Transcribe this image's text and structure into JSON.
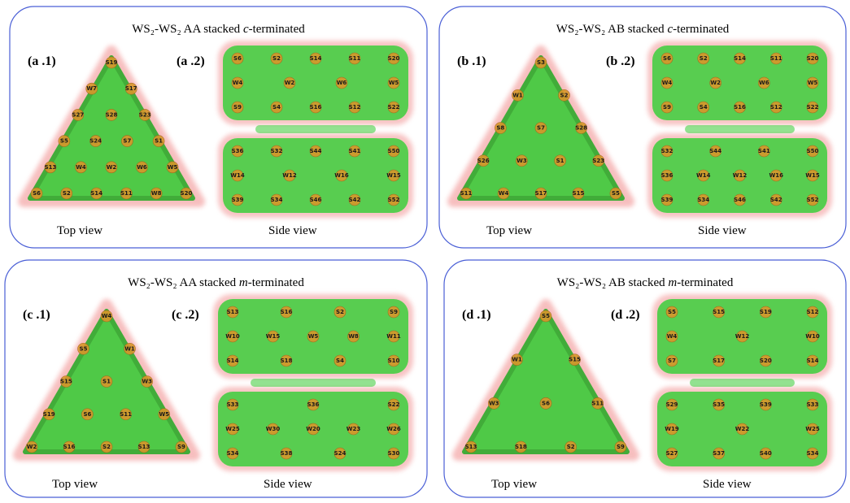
{
  "panels": [
    {
      "title": {
        "prefix": "WS₂-WS₂ AA stacked ",
        "term": "c",
        "suffix": "-terminated"
      },
      "top_label": "(a .1)",
      "side_label": "(a .2)",
      "top_caption": "Top view",
      "side_caption": "Side view",
      "top_atoms": [
        "S19",
        "W7",
        "S17",
        "S27",
        "S28",
        "S23",
        "S5",
        "S24",
        "S7",
        "S1",
        "S13",
        "W4",
        "W2",
        "W6",
        "W5",
        "S6",
        "S2",
        "S14",
        "S11",
        "W8",
        "S20"
      ],
      "side_upper": [
        [
          "S6",
          "S2",
          "S14",
          "S11",
          "S20"
        ],
        [
          "W4",
          "W2",
          "W6",
          "W5"
        ],
        [
          "S9",
          "S4",
          "S16",
          "S12",
          "S22"
        ]
      ],
      "side_lower": [
        [
          "S36",
          "S32",
          "S44",
          "S41",
          "S50"
        ],
        [
          "W14",
          "W12",
          "W16",
          "W15"
        ],
        [
          "S39",
          "S34",
          "S46",
          "S42",
          "S52"
        ]
      ]
    },
    {
      "title": {
        "prefix": "WS₂-WS₂ AB stacked ",
        "term": "c",
        "suffix": "-terminated"
      },
      "top_label": "(b .1)",
      "side_label": "(b .2)",
      "top_caption": "Top view",
      "side_caption": "Side view",
      "top_atoms": [
        "S3",
        "W1",
        "S2",
        "S8",
        "S7",
        "S28",
        "S26",
        "W3",
        "S1",
        "S23",
        "S11",
        "W4",
        "S17",
        "S15",
        "S5"
      ],
      "side_upper": [
        [
          "S6",
          "S2",
          "S14",
          "S11",
          "S20"
        ],
        [
          "W4",
          "W2",
          "W6",
          "W5"
        ],
        [
          "S9",
          "S4",
          "S16",
          "S12",
          "S22"
        ]
      ],
      "side_lower": [
        [
          "S32",
          "S44",
          "S41",
          "S50"
        ],
        [
          "S36",
          "W14",
          "W12",
          "W16",
          "W15"
        ],
        [
          "S39",
          "S34",
          "S46",
          "S42",
          "S52"
        ]
      ]
    },
    {
      "title": {
        "prefix": "WS₂-WS₂ AA stacked ",
        "term": "m",
        "suffix": "-terminated"
      },
      "top_label": "(c .1)",
      "side_label": "(c .2)",
      "top_caption": "Top view",
      "side_caption": "Side view",
      "top_atoms": [
        "W4",
        "S5",
        "W1",
        "S15",
        "S1",
        "W3",
        "S19",
        "S6",
        "S11",
        "W5",
        "W2",
        "S16",
        "S2",
        "S13",
        "S9"
      ],
      "side_upper": [
        [
          "S13",
          "S16",
          "S2",
          "S9"
        ],
        [
          "W10",
          "W15",
          "W5",
          "W8",
          "W11"
        ],
        [
          "S14",
          "S18",
          "S4",
          "S10"
        ]
      ],
      "side_lower": [
        [
          "S33",
          "S36",
          "S22"
        ],
        [
          "W25",
          "W30",
          "W20",
          "W23",
          "W26"
        ],
        [
          "S34",
          "S38",
          "S24",
          "S30"
        ]
      ]
    },
    {
      "title": {
        "prefix": "WS₂-WS₂ AB stacked ",
        "term": "m",
        "suffix": "-terminated"
      },
      "top_label": "(d .1)",
      "side_label": "(d .2)",
      "top_caption": "Top view",
      "side_caption": "Side view",
      "top_atoms": [
        "S5",
        "W1",
        "S15",
        "W3",
        "S6",
        "S11",
        "S13",
        "S18",
        "S2",
        "S9"
      ],
      "side_upper": [
        [
          "S5",
          "S15",
          "S19",
          "S12"
        ],
        [
          "W4",
          "W12",
          "W10"
        ],
        [
          "S7",
          "S17",
          "S20",
          "S14"
        ]
      ],
      "side_lower": [
        [
          "S29",
          "S35",
          "S39",
          "S33"
        ],
        [
          "W19",
          "W22",
          "W25"
        ],
        [
          "S27",
          "S37",
          "S40",
          "S34"
        ]
      ]
    }
  ]
}
